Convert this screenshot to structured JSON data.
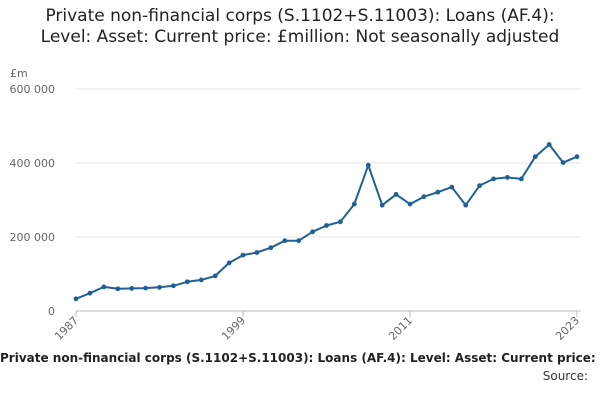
{
  "chart_data": {
    "type": "line",
    "title": "Private non-financial corps (S.1102+S.11003): Loans (AF.4): Level: Asset: Current price: £million: Not seasonally adjusted",
    "ylabel": "£m",
    "xlabel": "",
    "ylim": [
      0,
      600000
    ],
    "xlim": [
      1987,
      2023
    ],
    "yticks": [
      0,
      200000,
      400000,
      600000
    ],
    "ytick_labels": [
      "0",
      "200 000",
      "400 000",
      "600 000"
    ],
    "xticks": [
      1987,
      1999,
      2011,
      2023
    ],
    "xtick_labels": [
      "1987",
      "1999",
      "2011",
      "2023"
    ],
    "grid": true,
    "legend": "none",
    "color": "#206095",
    "series": [
      {
        "x": [
          1987,
          1988,
          1989,
          1990,
          1991,
          1992,
          1993,
          1994,
          1995,
          1996,
          1997,
          1998,
          1999,
          2000,
          2001,
          2002,
          2003,
          2004,
          2005,
          2006,
          2007,
          2008,
          2009,
          2010,
          2011,
          2012,
          2013,
          2014,
          2015,
          2016,
          2017,
          2018,
          2019,
          2020,
          2021,
          2022,
          2023
        ],
        "values": [
          33000,
          48000,
          65000,
          60000,
          61000,
          62000,
          64000,
          68000,
          79000,
          84000,
          95000,
          130000,
          151000,
          158000,
          171000,
          190000,
          190000,
          214000,
          231000,
          241000,
          289000,
          394000,
          286000,
          315000,
          289000,
          309000,
          321000,
          335000,
          286000,
          339000,
          357000,
          361000,
          357000,
          417000,
          450000,
          401000,
          417000
        ]
      }
    ]
  },
  "caption": "Private non-financial corps (S.1102+S.11003): Loans (AF.4): Level: Asset: Current price: £million: Not seasonally adjusted",
  "source": "Source:"
}
